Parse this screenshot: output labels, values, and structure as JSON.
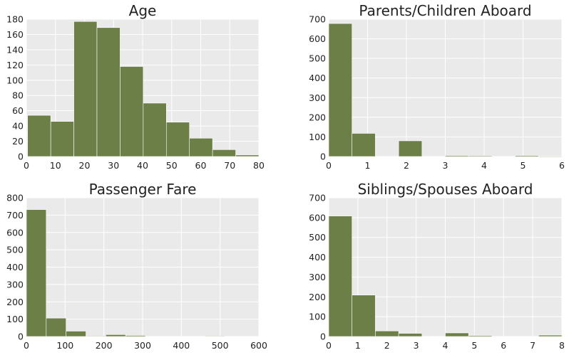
{
  "colors": {
    "bar": "#6b7f47",
    "panel_background": "#eaeaea",
    "grid": "#ffffff"
  },
  "chart_data": [
    {
      "type": "bar",
      "title": "Age",
      "grid": true,
      "xlim": [
        0,
        80
      ],
      "ylim": [
        0,
        180
      ],
      "xticks": [
        "0",
        "10",
        "20",
        "30",
        "40",
        "50",
        "60",
        "70",
        "80"
      ],
      "yticks": [
        "0",
        "20",
        "40",
        "60",
        "80",
        "100",
        "120",
        "140",
        "160",
        "180"
      ],
      "bins": [
        {
          "x0": 0.42,
          "x1": 8.38,
          "count": 54
        },
        {
          "x0": 8.38,
          "x1": 16.34,
          "count": 46
        },
        {
          "x0": 16.34,
          "x1": 24.29,
          "count": 177
        },
        {
          "x0": 24.29,
          "x1": 32.25,
          "count": 169
        },
        {
          "x0": 32.25,
          "x1": 40.21,
          "count": 118
        },
        {
          "x0": 40.21,
          "x1": 48.17,
          "count": 70
        },
        {
          "x0": 48.17,
          "x1": 56.13,
          "count": 45
        },
        {
          "x0": 56.13,
          "x1": 64.08,
          "count": 24
        },
        {
          "x0": 64.08,
          "x1": 72.04,
          "count": 9
        },
        {
          "x0": 72.04,
          "x1": 80.0,
          "count": 2
        }
      ]
    },
    {
      "type": "bar",
      "title": "Parents/Children Aboard",
      "grid": true,
      "xlim": [
        0,
        6
      ],
      "ylim": [
        0,
        700
      ],
      "xticks": [
        "0",
        "1",
        "2",
        "3",
        "4",
        "5",
        "6"
      ],
      "yticks": [
        "0",
        "100",
        "200",
        "300",
        "400",
        "500",
        "600",
        "700"
      ],
      "bins": [
        {
          "x0": 0.0,
          "x1": 0.6,
          "count": 678
        },
        {
          "x0": 0.6,
          "x1": 1.2,
          "count": 118
        },
        {
          "x0": 1.2,
          "x1": 1.8,
          "count": 0
        },
        {
          "x0": 1.8,
          "x1": 2.4,
          "count": 80
        },
        {
          "x0": 2.4,
          "x1": 3.0,
          "count": 0
        },
        {
          "x0": 3.0,
          "x1": 3.6,
          "count": 5
        },
        {
          "x0": 3.6,
          "x1": 4.2,
          "count": 4
        },
        {
          "x0": 4.2,
          "x1": 4.8,
          "count": 0
        },
        {
          "x0": 4.8,
          "x1": 5.4,
          "count": 5
        },
        {
          "x0": 5.4,
          "x1": 6.0,
          "count": 1
        }
      ]
    },
    {
      "type": "bar",
      "title": "Passenger Fare",
      "grid": true,
      "xlim": [
        0,
        600
      ],
      "ylim": [
        0,
        800
      ],
      "xticks": [
        "0",
        "100",
        "200",
        "300",
        "400",
        "500",
        "600"
      ],
      "yticks": [
        "0",
        "100",
        "200",
        "300",
        "400",
        "500",
        "600",
        "700",
        "800"
      ],
      "bins": [
        {
          "x0": 0.0,
          "x1": 51.23,
          "count": 732
        },
        {
          "x0": 51.23,
          "x1": 102.47,
          "count": 106
        },
        {
          "x0": 102.47,
          "x1": 153.7,
          "count": 31
        },
        {
          "x0": 153.7,
          "x1": 204.94,
          "count": 2
        },
        {
          "x0": 204.94,
          "x1": 256.17,
          "count": 11
        },
        {
          "x0": 256.17,
          "x1": 307.4,
          "count": 6
        },
        {
          "x0": 307.4,
          "x1": 358.64,
          "count": 0
        },
        {
          "x0": 358.64,
          "x1": 409.87,
          "count": 0
        },
        {
          "x0": 409.87,
          "x1": 461.11,
          "count": 0
        },
        {
          "x0": 461.11,
          "x1": 512.33,
          "count": 3
        }
      ]
    },
    {
      "type": "bar",
      "title": "Siblings/Spouses Aboard",
      "grid": true,
      "xlim": [
        0,
        8
      ],
      "ylim": [
        0,
        700
      ],
      "xticks": [
        "0",
        "1",
        "2",
        "3",
        "4",
        "5",
        "6",
        "7",
        "8"
      ],
      "yticks": [
        "0",
        "100",
        "200",
        "300",
        "400",
        "500",
        "600",
        "700"
      ],
      "bins": [
        {
          "x0": 0.0,
          "x1": 0.8,
          "count": 608
        },
        {
          "x0": 0.8,
          "x1": 1.6,
          "count": 209
        },
        {
          "x0": 1.6,
          "x1": 2.4,
          "count": 28
        },
        {
          "x0": 2.4,
          "x1": 3.2,
          "count": 16
        },
        {
          "x0": 3.2,
          "x1": 4.0,
          "count": 0
        },
        {
          "x0": 4.0,
          "x1": 4.8,
          "count": 18
        },
        {
          "x0": 4.8,
          "x1": 5.6,
          "count": 5
        },
        {
          "x0": 5.6,
          "x1": 6.4,
          "count": 0
        },
        {
          "x0": 6.4,
          "x1": 7.2,
          "count": 0
        },
        {
          "x0": 7.2,
          "x1": 8.0,
          "count": 7
        }
      ]
    }
  ]
}
